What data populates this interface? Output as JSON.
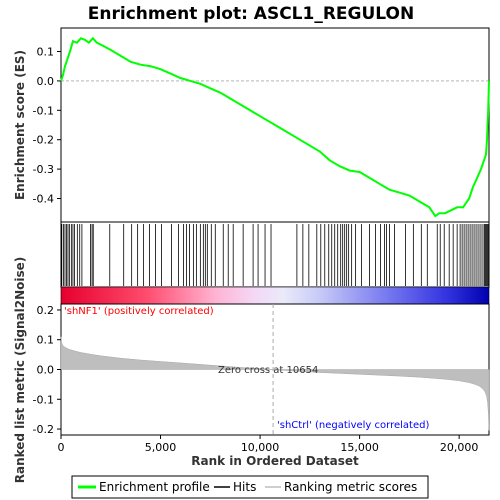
{
  "chart_data": {
    "type": "line",
    "title": "Enrichment plot: ASCL1_REGULON",
    "xlabel": "Rank in Ordered Dataset",
    "ylabel_top": "Enrichment score (ES)",
    "ylabel_bottom": "Ranked list metric (Signal2Noise)",
    "xlim": [
      0,
      21500
    ],
    "x_ticks": [
      0,
      5000,
      10000,
      15000,
      20000
    ],
    "x_tick_labels": [
      "0",
      "5,000",
      "10,000",
      "15,000",
      "20,000"
    ],
    "es_panel": {
      "ylim": [
        -0.48,
        0.18
      ],
      "y_ticks": [
        0.1,
        0.0,
        -0.1,
        -0.2,
        -0.3,
        -0.4
      ],
      "y_tick_labels": [
        "0.1",
        "0.0",
        "-0.1",
        "-0.2",
        "-0.3",
        "-0.4"
      ],
      "series": [
        {
          "name": "Enrichment profile",
          "color": "#00ff00",
          "x": [
            0,
            100,
            200,
            300,
            450,
            600,
            800,
            1000,
            1200,
            1400,
            1600,
            1800,
            2100,
            2500,
            3000,
            3500,
            4000,
            4500,
            5000,
            5500,
            6000,
            6500,
            7000,
            7500,
            8000,
            9000,
            10000,
            11000,
            12000,
            13000,
            13500,
            14000,
            14500,
            15000,
            15500,
            16000,
            16500,
            17000,
            17500,
            18000,
            18500,
            18800,
            19000,
            19300,
            19600,
            19900,
            20200,
            20500,
            20700,
            20900,
            21100,
            21250,
            21350,
            21400,
            21430,
            21460,
            21480,
            21500
          ],
          "y": [
            0.0,
            0.02,
            0.05,
            0.07,
            0.1,
            0.135,
            0.13,
            0.145,
            0.14,
            0.13,
            0.145,
            0.13,
            0.12,
            0.105,
            0.085,
            0.065,
            0.055,
            0.05,
            0.04,
            0.025,
            0.01,
            0.0,
            -0.01,
            -0.025,
            -0.04,
            -0.08,
            -0.12,
            -0.16,
            -0.2,
            -0.24,
            -0.27,
            -0.29,
            -0.305,
            -0.31,
            -0.33,
            -0.35,
            -0.37,
            -0.38,
            -0.39,
            -0.41,
            -0.43,
            -0.46,
            -0.45,
            -0.45,
            -0.44,
            -0.43,
            -0.43,
            -0.4,
            -0.36,
            -0.33,
            -0.3,
            -0.27,
            -0.25,
            -0.2,
            -0.15,
            -0.1,
            -0.05,
            0.0
          ]
        }
      ]
    },
    "hits": {
      "name": "Hits",
      "color": "#000000",
      "ranks": [
        40,
        120,
        200,
        280,
        350,
        420,
        520,
        600,
        680,
        820,
        940,
        1050,
        1480,
        1560,
        1620,
        2450,
        3150,
        3550,
        3850,
        4150,
        4450,
        4750,
        5050,
        5550,
        5900,
        6150,
        6300,
        6450,
        6650,
        6800,
        7000,
        7150,
        7250,
        7350,
        7550,
        7750,
        8150,
        8400,
        8650,
        9150,
        9650,
        9900,
        10250,
        10550,
        11850,
        12150,
        12450,
        12850,
        13050,
        13250,
        13450,
        13600,
        13750,
        13900,
        14050,
        14150,
        14250,
        14350,
        14450,
        14600,
        14800,
        15100,
        15500,
        15800,
        16050,
        16250,
        16350,
        16500,
        16750,
        17300,
        17700,
        18100,
        18400,
        18900,
        19050,
        19250,
        19500,
        19700,
        19900,
        20050,
        20150,
        20250,
        20350,
        20450,
        20550,
        20650,
        20750,
        20850,
        20950,
        21050,
        21150,
        21250,
        21300,
        21350,
        21400,
        21450
      ]
    },
    "ranking_metric": {
      "name": "Ranking metric scores",
      "color": "#bebebe",
      "ylim": [
        -0.22,
        0.22
      ],
      "y_ticks": [
        0.2,
        0.1,
        0.0,
        -0.1,
        -0.2
      ],
      "y_tick_labels": [
        "0.2",
        "0.1",
        "0.0",
        "-0.1",
        "-0.2"
      ],
      "x": [
        0,
        30,
        100,
        200,
        400,
        700,
        1000,
        1500,
        2000,
        3000,
        4000,
        5000,
        6000,
        7000,
        8000,
        9000,
        10000,
        10654,
        11000,
        12000,
        13000,
        14000,
        15000,
        16000,
        17000,
        18000,
        19000,
        19500,
        20000,
        20500,
        20800,
        21000,
        21100,
        21200,
        21300,
        21380,
        21430,
        21470,
        21500
      ],
      "y": [
        0.11,
        0.09,
        0.08,
        0.075,
        0.068,
        0.062,
        0.057,
        0.051,
        0.046,
        0.038,
        0.032,
        0.027,
        0.022,
        0.017,
        0.012,
        0.007,
        0.003,
        0.0,
        -0.002,
        -0.006,
        -0.01,
        -0.013,
        -0.016,
        -0.019,
        -0.022,
        -0.026,
        -0.031,
        -0.034,
        -0.038,
        -0.044,
        -0.05,
        -0.055,
        -0.06,
        -0.066,
        -0.075,
        -0.09,
        -0.11,
        -0.15,
        -0.205
      ]
    },
    "annotations": {
      "positive": "'shNF1' (positively correlated)",
      "negative": "'shCtrl' (negatively correlated)",
      "zero_cross": "Zero cross at 10654",
      "zero_cross_rank": 10654
    },
    "colors": {
      "profile": "#00ff00",
      "positive_text": "#ff0000",
      "negative_text": "#0000ff",
      "metric_fill": "#bebebe"
    },
    "legend": {
      "placement": "bottom",
      "items": [
        {
          "label": "Enrichment profile",
          "color": "#00ff00"
        },
        {
          "label": "Hits",
          "color": "#000000"
        },
        {
          "label": "Ranking metric scores",
          "color": "#bebebe"
        }
      ]
    }
  }
}
